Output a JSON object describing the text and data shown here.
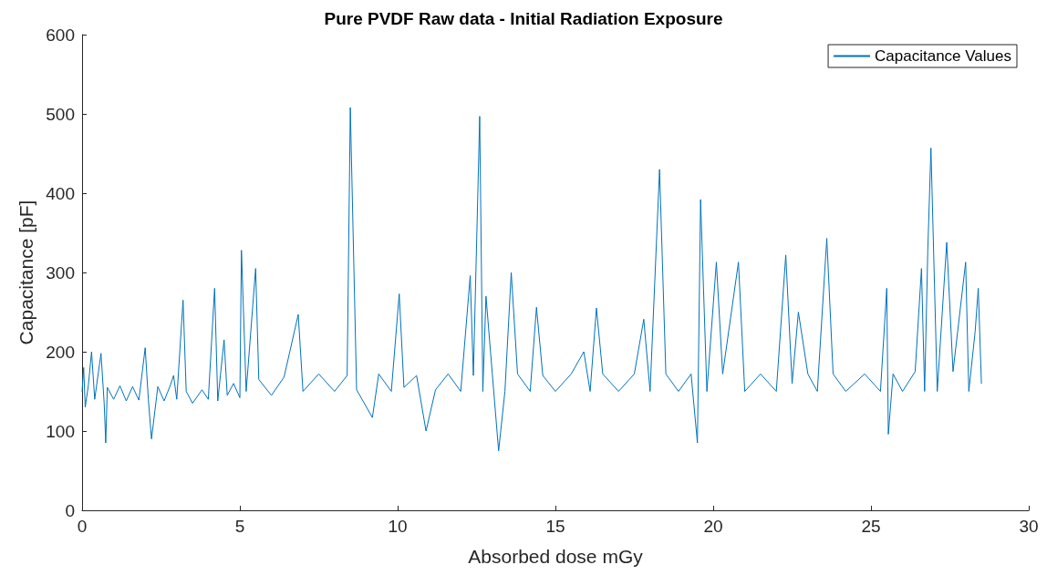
{
  "chart_data": {
    "type": "line",
    "title": "Pure PVDF Raw data - Initial Radiation Exposure",
    "xlabel": "Absorbed dose mGy",
    "ylabel": "Capacitance [pF]",
    "xlim": [
      0,
      30
    ],
    "xticks": [
      0,
      5,
      10,
      15,
      20,
      25,
      30
    ],
    "ylim": [
      0,
      600
    ],
    "yticks": [
      0,
      100,
      200,
      300,
      400,
      500,
      600
    ],
    "grid": false,
    "legend": "top right",
    "marker": "none",
    "line_style": "solid",
    "series": [
      {
        "name": "Capacitance Values",
        "color": "#0072bd",
        "x": [
          0,
          0.05,
          0.1,
          0.2,
          0.3,
          0.4,
          0.6,
          0.7,
          0.75,
          0.8,
          1.0,
          1.2,
          1.4,
          1.6,
          1.8,
          2.0,
          2.1,
          2.2,
          2.4,
          2.6,
          2.8,
          2.9,
          3.0,
          3.2,
          3.3,
          3.5,
          3.8,
          4.0,
          4.2,
          4.3,
          4.5,
          4.6,
          4.8,
          5.0,
          5.05,
          5.2,
          5.5,
          5.6,
          6.0,
          6.4,
          6.85,
          7.0,
          7.5,
          8.0,
          8.4,
          8.5,
          8.7,
          9.2,
          9.4,
          9.8,
          10.05,
          10.2,
          10.6,
          10.9,
          11.2,
          11.6,
          12.0,
          12.3,
          12.4,
          12.6,
          12.7,
          12.8,
          13.0,
          13.2,
          13.4,
          13.6,
          13.8,
          14.2,
          14.4,
          14.6,
          15.0,
          15.5,
          15.9,
          16.1,
          16.3,
          16.5,
          17.0,
          17.5,
          17.8,
          18.0,
          18.3,
          18.5,
          18.9,
          19.3,
          19.5,
          19.6,
          19.8,
          20.1,
          20.3,
          20.8,
          21.0,
          21.5,
          22.0,
          22.3,
          22.5,
          22.7,
          23.0,
          23.3,
          23.6,
          23.8,
          24.2,
          24.8,
          25.3,
          25.5,
          25.55,
          25.7,
          26.0,
          26.4,
          26.6,
          26.7,
          26.8,
          26.9,
          27.1,
          27.4,
          27.6,
          28.0,
          28.1,
          28.3,
          28.4,
          28.5
        ],
        "values": [
          150,
          180,
          130,
          158,
          200,
          140,
          198,
          135,
          85,
          155,
          140,
          157,
          138,
          156,
          139,
          205,
          140,
          90,
          156,
          138,
          158,
          170,
          140,
          265,
          150,
          135,
          152,
          140,
          280,
          138,
          215,
          145,
          160,
          142,
          328,
          150,
          305,
          165,
          145,
          168,
          247,
          150,
          172,
          150,
          170,
          508,
          152,
          117,
          172,
          150,
          273,
          155,
          170,
          100,
          152,
          172,
          150,
          296,
          170,
          497,
          150,
          270,
          172,
          75,
          150,
          300,
          172,
          150,
          256,
          170,
          150,
          172,
          200,
          150,
          255,
          172,
          150,
          172,
          241,
          150,
          430,
          172,
          150,
          172,
          85,
          392,
          150,
          313,
          172,
          313,
          150,
          172,
          150,
          322,
          160,
          250,
          172,
          150,
          343,
          172,
          150,
          172,
          150,
          280,
          96,
          172,
          150,
          175,
          305,
          150,
          327,
          457,
          150,
          338,
          175,
          313,
          150,
          225,
          280,
          160
        ]
      }
    ]
  }
}
